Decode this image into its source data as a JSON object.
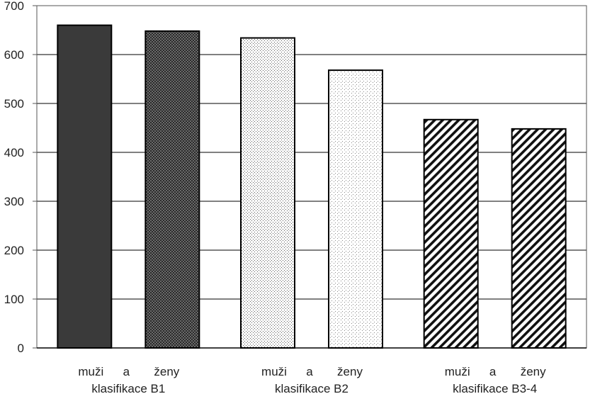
{
  "chart_data": {
    "type": "bar",
    "ylim": [
      0,
      700
    ],
    "yticks": [
      "0",
      "100",
      "200",
      "300",
      "400",
      "500",
      "600",
      "700"
    ],
    "grid": true,
    "groups": [
      {
        "line1": [
          "muži",
          "a",
          "ženy"
        ],
        "line2": "klasifikace B1",
        "bars": [
          {
            "label": "muži",
            "value": 660,
            "pattern": "solid-dark"
          },
          {
            "label": "ženy",
            "value": 648,
            "pattern": "dense-dots"
          }
        ]
      },
      {
        "line1": [
          "muži",
          "a",
          "ženy"
        ],
        "line2": "klasifikace B2",
        "bars": [
          {
            "label": "muži",
            "value": 634,
            "pattern": "sparse-dots"
          },
          {
            "label": "ženy",
            "value": 568,
            "pattern": "light-dots"
          }
        ]
      },
      {
        "line1": [
          "muži",
          "a",
          "ženy"
        ],
        "line2": "klasifikace B3-4",
        "bars": [
          {
            "label": "muži",
            "value": 467,
            "pattern": "diagonal-hatch"
          },
          {
            "label": "ženy",
            "value": 448,
            "pattern": "diagonal-hatch"
          }
        ]
      }
    ],
    "colors": {
      "dark": "#3a3a3a",
      "grid": "#000000",
      "axis": "#555555"
    }
  }
}
